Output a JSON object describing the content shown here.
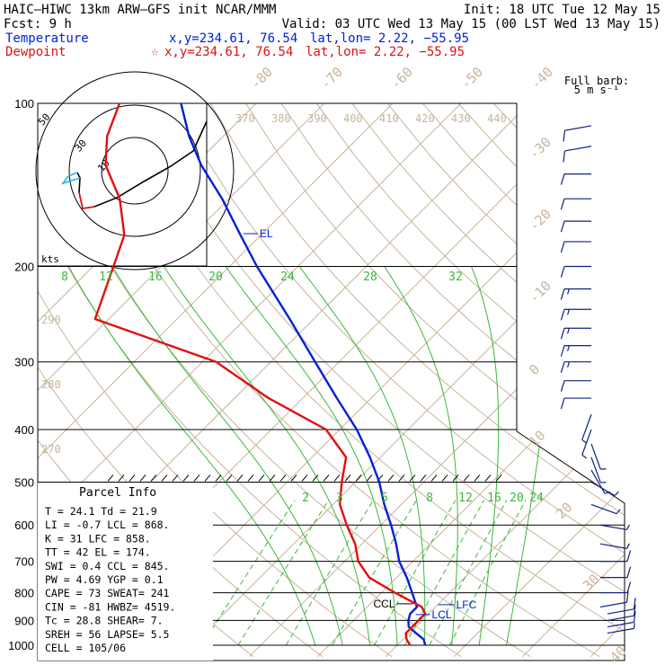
{
  "header": {
    "model_line": "HAIC–HIWC 13km ARW–GFS init   NCAR/MMM",
    "init_line": "Init: 18 UTC Tue 12 May 15",
    "fcst_line": "Fcst:    9 h",
    "valid_line": "Valid: 03 UTC Wed 13 May 15 (00 LST Wed 13 May 15)",
    "temperature_label": "Temperature",
    "temperature_xy": "x,y=234.61, 76.54",
    "temperature_latlon": "lat,lon=  2.22, −55.95",
    "dewpoint_label": "Dewpoint",
    "dewpoint_star": "☆",
    "dewpoint_xy": "x,y=234.61, 76.54",
    "dewpoint_latlon": "lat,lon=  2.22, −55.95"
  },
  "barb_legend": {
    "line1": "Full barb:",
    "line2": "5 m s⁻¹"
  },
  "colors": {
    "temperature": "#0020d8",
    "dewpoint": "#e01010",
    "isotherm": "#c8b49a",
    "dry_adiabat": "#c8b49a",
    "moist_adiabat": "#3ab83a",
    "mixing_ratio": "#3ab83a",
    "isobar": "#000000",
    "wind": "#102080",
    "hodo_blue": "#2ab0e0"
  },
  "parcel_info": {
    "title": "Parcel Info",
    "rows": [
      "T   =   24.1  Td =  21.9",
      "LI  =   -0.7  LCL =  868.",
      "K   =     31  LFC =  858.",
      "TT  =     42  EL  =  174.",
      "SWI =    0.4  CCL =  845.",
      "PW  =   4.69  YGP =   0.1",
      "CAPE =    73  SWEAT=  241",
      "CIN  =   -81  HWBZ= 4519.",
      "Tc  =   28.8  SHEAR=   7.",
      "SREH =    56  LAPSE=  5.5",
      "CELL = 105/06"
    ]
  },
  "hodograph": {
    "ring_labels": [
      "50",
      "30",
      "10"
    ],
    "unit": "kts"
  },
  "chart_data": {
    "type": "line",
    "title": "",
    "xlabel": "",
    "ylabel": "",
    "y_axis": "pressure (hPa), log scale",
    "ylim": [
      1000,
      100
    ],
    "pressure_ticks": [
      "100",
      "200",
      "300",
      "400",
      "500",
      "600",
      "700",
      "800",
      "900",
      "1000"
    ],
    "isotherm_labels_top": [
      "-80",
      "-70",
      "-60",
      "-50",
      "-40"
    ],
    "isotherm_labels_right": [
      "-30",
      "-20",
      "-10",
      "0",
      "10",
      "20",
      "30",
      "40"
    ],
    "theta_labels_top": [
      "370",
      "380",
      "390",
      "400",
      "410",
      "420",
      "430",
      "440"
    ],
    "theta_labels_left": [
      "290",
      "280",
      "270"
    ],
    "moist_adiabat_labels": [
      "8",
      "12",
      "16",
      "20",
      "24",
      "28",
      "32"
    ],
    "mixing_ratio_labels": [
      "2",
      "3",
      "5",
      "8",
      "12",
      "16",
      "20",
      "24"
    ],
    "series": [
      {
        "name": "Temperature",
        "p": [
          1000,
          975,
          950,
          925,
          900,
          875,
          850,
          800,
          750,
          700,
          650,
          600,
          550,
          500,
          450,
          400,
          350,
          300,
          250,
          200,
          175,
          150,
          130,
          115,
          100
        ],
        "t": [
          24.1,
          23.0,
          21.0,
          19.0,
          18.0,
          17.3,
          17.3,
          14.5,
          11.5,
          8.0,
          5.0,
          1.5,
          -2.5,
          -6.5,
          -11.5,
          -17.5,
          -25.0,
          -33.5,
          -43.5,
          -56.0,
          -63.0,
          -71.0,
          -79.0,
          -85.0,
          -91.0
        ]
      },
      {
        "name": "Dewpoint",
        "p": [
          1000,
          975,
          950,
          925,
          900,
          875,
          850,
          800,
          750,
          700,
          650,
          600,
          550,
          500,
          450,
          400,
          350,
          300,
          250,
          200,
          175,
          150,
          130,
          115,
          100
        ],
        "t": [
          21.9,
          20.5,
          19.5,
          19.5,
          19.5,
          19.5,
          18.0,
          12.0,
          6.0,
          2.0,
          -1.0,
          -5.0,
          -9.0,
          -12.0,
          -15.0,
          -22.0,
          -35.0,
          -48.0,
          -72.0,
          -77.0,
          -80.0,
          -86.0,
          -93.0,
          -97.0,
          -100.0
        ]
      }
    ],
    "levels": [
      {
        "name": "EL",
        "p": 174
      },
      {
        "name": "LCL",
        "p": 868
      },
      {
        "name": "LFC",
        "p": 858
      },
      {
        "name": "CCL",
        "p": 845
      }
    ],
    "wind_barbs": [
      {
        "p": 100,
        "kts": 10,
        "dir": 260
      },
      {
        "p": 110,
        "kts": 10,
        "dir": 260
      },
      {
        "p": 120,
        "kts": 10,
        "dir": 260
      },
      {
        "p": 135,
        "kts": 10,
        "dir": 270
      },
      {
        "p": 150,
        "kts": 10,
        "dir": 270
      },
      {
        "p": 165,
        "kts": 10,
        "dir": 270
      },
      {
        "p": 180,
        "kts": 10,
        "dir": 270
      },
      {
        "p": 200,
        "kts": 10,
        "dir": 270
      },
      {
        "p": 220,
        "kts": 15,
        "dir": 270
      },
      {
        "p": 240,
        "kts": 15,
        "dir": 270
      },
      {
        "p": 260,
        "kts": 15,
        "dir": 270
      },
      {
        "p": 280,
        "kts": 15,
        "dir": 270
      },
      {
        "p": 300,
        "kts": 15,
        "dir": 270
      },
      {
        "p": 325,
        "kts": 10,
        "dir": 270
      },
      {
        "p": 350,
        "kts": 10,
        "dir": 270
      },
      {
        "p": 375,
        "kts": 5,
        "dir": 200
      },
      {
        "p": 400,
        "kts": 5,
        "dir": 200
      },
      {
        "p": 425,
        "kts": 5,
        "dir": 160
      },
      {
        "p": 450,
        "kts": 5,
        "dir": 160
      },
      {
        "p": 475,
        "kts": 5,
        "dir": 150
      },
      {
        "p": 500,
        "kts": 5,
        "dir": 120
      },
      {
        "p": 550,
        "kts": 5,
        "dir": 110
      },
      {
        "p": 600,
        "kts": 5,
        "dir": 100
      },
      {
        "p": 650,
        "kts": 5,
        "dir": 100
      },
      {
        "p": 700,
        "kts": 10,
        "dir": 90
      },
      {
        "p": 750,
        "kts": 10,
        "dir": 90
      },
      {
        "p": 800,
        "kts": 10,
        "dir": 90
      },
      {
        "p": 850,
        "kts": 10,
        "dir": 80
      },
      {
        "p": 875,
        "kts": 10,
        "dir": 80
      },
      {
        "p": 900,
        "kts": 10,
        "dir": 80
      },
      {
        "p": 925,
        "kts": 10,
        "dir": 80
      },
      {
        "p": 950,
        "kts": 5,
        "dir": 80
      },
      {
        "p": 975,
        "kts": 5,
        "dir": 80
      }
    ]
  }
}
